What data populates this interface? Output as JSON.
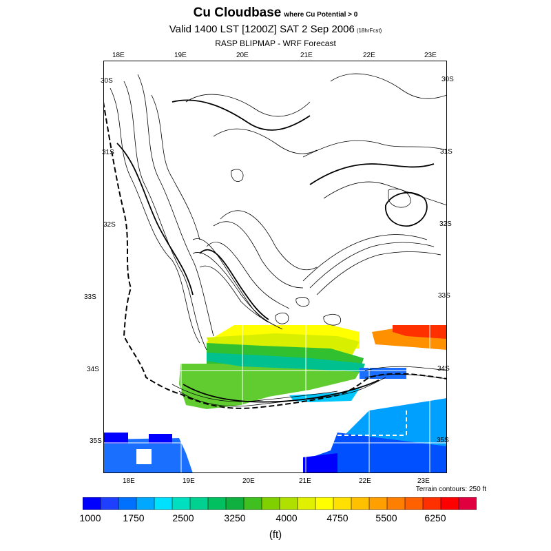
{
  "title": {
    "main": "Cu Cloudbase",
    "qualifier": "where Cu Potential > 0",
    "valid": "Valid 1400 LST [1200Z] SAT 2 Sep 2006",
    "forecast": "(18hrFcst)",
    "source": "RASP BLIPMAP - WRF Forecast"
  },
  "map": {
    "top_lon_labels": [
      "18E",
      "19E",
      "20E",
      "21E",
      "22E",
      "23E"
    ],
    "bottom_lon_labels": [
      "18E",
      "19E",
      "20E",
      "21E",
      "22E",
      "23E"
    ],
    "left_lat_labels": [
      "30S",
      "31S",
      "32S",
      "33S",
      "34S",
      "35S"
    ],
    "right_lat_labels": [
      "30S",
      "31S",
      "32S",
      "33S",
      "34S",
      "35S"
    ],
    "terrain_note": "Terrain contours: 250 ft"
  },
  "colorbar": {
    "colors": [
      "#0000ff",
      "#1f3fff",
      "#0070ff",
      "#00a8ff",
      "#00e0ff",
      "#00e0c0",
      "#00d090",
      "#00c060",
      "#10b040",
      "#40c020",
      "#80d000",
      "#b0e000",
      "#e0f000",
      "#ffff00",
      "#ffe000",
      "#ffc000",
      "#ffa000",
      "#ff8000",
      "#ff6000",
      "#ff3000",
      "#ff0000",
      "#e00040"
    ],
    "labels": [
      "1000",
      "1750",
      "2500",
      "3250",
      "4000",
      "4750",
      "5500",
      "6250"
    ],
    "unit": "(ft)"
  }
}
